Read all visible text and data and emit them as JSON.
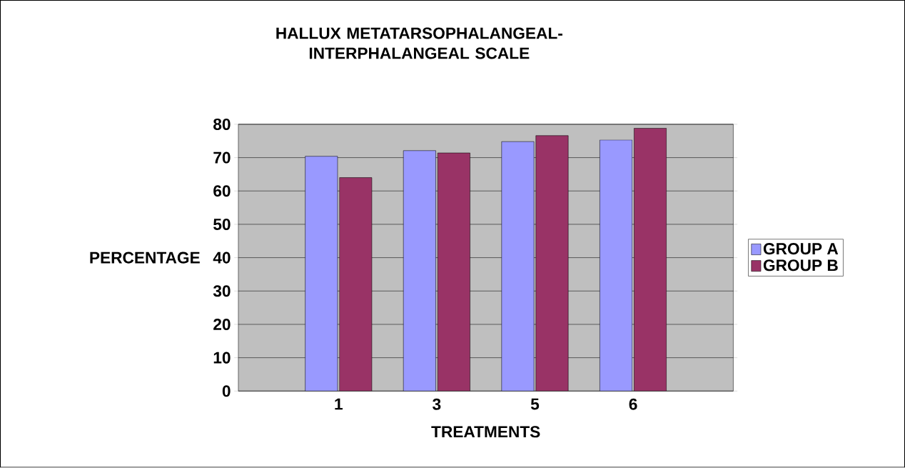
{
  "chart_data": {
    "type": "bar",
    "title": "HALLUX METATARSOPHALANGEAL-INTERPHALANGEAL SCALE",
    "xlabel": "TREATMENTS",
    "ylabel": "PERCENTAGE",
    "categories": [
      "1",
      "3",
      "5",
      "6"
    ],
    "series": [
      {
        "name": "GROUP A",
        "color": "#9999ff",
        "values": [
          70.4,
          72.1,
          74.8,
          75.3
        ]
      },
      {
        "name": "GROUP B",
        "color": "#993366",
        "values": [
          64,
          71.4,
          76.6,
          78.8
        ]
      }
    ],
    "ylim": [
      0,
      80
    ],
    "yticks": [
      0,
      10,
      20,
      30,
      40,
      50,
      60,
      70,
      80
    ],
    "grid": "y",
    "legend": "right"
  }
}
